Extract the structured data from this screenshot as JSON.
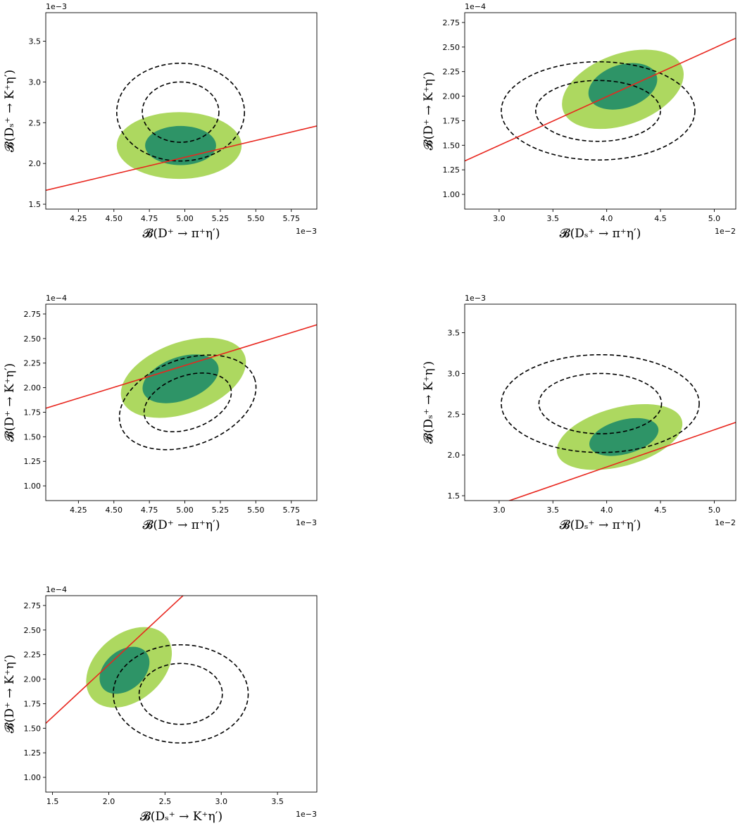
{
  "colors": {
    "outer_band": "#add860",
    "inner_band": "#2e9467",
    "fit_line": "#e8261e",
    "contour": "#000000",
    "frame": "#000000"
  },
  "chart_data": [
    {
      "type": "contour",
      "panel": "top-left",
      "xlabel": "𝓑(D⁺ → π⁺η′)",
      "ylabel": "𝓑(Dₛ⁺ → K⁺η′)",
      "x_offset_text": "1e−3",
      "y_offset_text": "1e−3",
      "xlim": [
        4.02,
        5.93
      ],
      "ylim": [
        1.44,
        3.85
      ],
      "xticks": [
        4.25,
        4.5,
        4.75,
        5.0,
        5.25,
        5.5,
        5.75
      ],
      "xtick_labels": [
        "4.25",
        "4.50",
        "4.75",
        "5.00",
        "5.25",
        "5.50",
        "5.75"
      ],
      "yticks": [
        1.5,
        2.0,
        2.5,
        3.0,
        3.5
      ],
      "ytick_labels": [
        "1.5",
        "2.0",
        "2.5",
        "3.0",
        "3.5"
      ],
      "outer_region": {
        "cx": 4.96,
        "cy": 2.22,
        "rx": 0.44,
        "ry": 0.41,
        "rot": 0
      },
      "inner_region": {
        "cx": 4.97,
        "cy": 2.22,
        "rx": 0.25,
        "ry": 0.24,
        "rot": 0
      },
      "dashed_contours": [
        {
          "cx": 4.97,
          "cy": 2.63,
          "rx": 0.27,
          "ry": 0.37,
          "rot": 0
        },
        {
          "cx": 4.97,
          "cy": 2.63,
          "rx": 0.45,
          "ry": 0.6,
          "rot": 0
        }
      ],
      "fit_line": {
        "x": [
          4.02,
          5.93
        ],
        "y": [
          1.67,
          2.46
        ]
      }
    },
    {
      "type": "contour",
      "panel": "top-right",
      "xlabel": "𝓑(Dₛ⁺ → π⁺η′)",
      "ylabel": "𝓑(D⁺ → K⁺η′)",
      "x_offset_text": "1e−2",
      "y_offset_text": "1e−4",
      "xlim": [
        2.68,
        5.2
      ],
      "ylim": [
        0.85,
        2.85
      ],
      "xticks": [
        3.0,
        3.5,
        4.0,
        4.5,
        5.0
      ],
      "xtick_labels": [
        "3.0",
        "3.5",
        "4.0",
        "4.5",
        "5.0"
      ],
      "yticks": [
        1.0,
        1.25,
        1.5,
        1.75,
        2.0,
        2.25,
        2.5,
        2.75
      ],
      "ytick_labels": [
        "1.00",
        "1.25",
        "1.50",
        "1.75",
        "2.00",
        "2.25",
        "2.50",
        "2.75"
      ],
      "outer_region": {
        "cx": 4.15,
        "cy": 2.07,
        "rx": 0.59,
        "ry": 0.36,
        "rot": 20
      },
      "inner_region": {
        "cx": 4.15,
        "cy": 2.1,
        "rx": 0.33,
        "ry": 0.22,
        "rot": 18
      },
      "dashed_contours": [
        {
          "cx": 3.92,
          "cy": 1.85,
          "rx": 0.58,
          "ry": 0.31,
          "rot": 0
        },
        {
          "cx": 3.92,
          "cy": 1.85,
          "rx": 0.9,
          "ry": 0.5,
          "rot": 0
        }
      ],
      "fit_line": {
        "x": [
          2.68,
          5.2
        ],
        "y": [
          1.34,
          2.59
        ]
      }
    },
    {
      "type": "contour",
      "panel": "middle-left",
      "xlabel": "𝓑(D⁺ → π⁺η′)",
      "ylabel": "𝓑(D⁺ → K⁺η′)",
      "x_offset_text": "1e−3",
      "y_offset_text": "1e−4",
      "xlim": [
        4.02,
        5.93
      ],
      "ylim": [
        0.85,
        2.85
      ],
      "xticks": [
        4.25,
        4.5,
        4.75,
        5.0,
        5.25,
        5.5,
        5.75
      ],
      "xtick_labels": [
        "4.25",
        "4.50",
        "4.75",
        "5.00",
        "5.25",
        "5.50",
        "5.75"
      ],
      "yticks": [
        1.0,
        1.25,
        1.5,
        1.75,
        2.0,
        2.25,
        2.5,
        2.75
      ],
      "ytick_labels": [
        "1.00",
        "1.25",
        "1.50",
        "1.75",
        "2.00",
        "2.25",
        "2.50",
        "2.75"
      ],
      "outer_region": {
        "cx": 4.99,
        "cy": 2.1,
        "rx": 0.46,
        "ry": 0.36,
        "rot": 20
      },
      "inner_region": {
        "cx": 4.97,
        "cy": 2.09,
        "rx": 0.28,
        "ry": 0.22,
        "rot": 20
      },
      "dashed_contours": [
        {
          "cx": 5.02,
          "cy": 1.85,
          "rx": 0.32,
          "ry": 0.27,
          "rot": 20
        },
        {
          "cx": 5.02,
          "cy": 1.85,
          "rx": 0.5,
          "ry": 0.44,
          "rot": 20
        }
      ],
      "fit_line": {
        "x": [
          4.02,
          5.93
        ],
        "y": [
          1.79,
          2.64
        ]
      }
    },
    {
      "type": "contour",
      "panel": "middle-right",
      "xlabel": "𝓑(Dₛ⁺ → π⁺η′)",
      "ylabel": "𝓑(Dₛ⁺ → K⁺η′)",
      "x_offset_text": "1e−2",
      "y_offset_text": "1e−3",
      "xlim": [
        2.68,
        5.2
      ],
      "ylim": [
        1.44,
        3.85
      ],
      "xticks": [
        3.0,
        3.5,
        4.0,
        4.5,
        5.0
      ],
      "xtick_labels": [
        "3.0",
        "3.5",
        "4.0",
        "4.5",
        "5.0"
      ],
      "yticks": [
        1.5,
        2.0,
        2.5,
        3.0,
        3.5
      ],
      "ytick_labels": [
        "1.5",
        "2.0",
        "2.5",
        "3.0",
        "3.5"
      ],
      "outer_region": {
        "cx": 4.12,
        "cy": 2.22,
        "rx": 0.6,
        "ry": 0.36,
        "rot": 15
      },
      "inner_region": {
        "cx": 4.16,
        "cy": 2.22,
        "rx": 0.33,
        "ry": 0.21,
        "rot": 15
      },
      "dashed_contours": [
        {
          "cx": 3.94,
          "cy": 2.63,
          "rx": 0.57,
          "ry": 0.37,
          "rot": 0
        },
        {
          "cx": 3.94,
          "cy": 2.63,
          "rx": 0.92,
          "ry": 0.6,
          "rot": 0
        }
      ],
      "fit_line": {
        "x": [
          2.68,
          5.2
        ],
        "y": [
          1.25,
          2.4
        ]
      }
    },
    {
      "type": "contour",
      "panel": "bottom-left",
      "xlabel": "𝓑(Dₛ⁺ → K⁺η′)",
      "ylabel": "𝓑(D⁺ → K⁺η′)",
      "x_offset_text": "1e−3",
      "y_offset_text": "1e−4",
      "xlim": [
        1.44,
        3.85
      ],
      "ylim": [
        0.85,
        2.85
      ],
      "xticks": [
        1.5,
        2.0,
        2.5,
        3.0,
        3.5
      ],
      "xtick_labels": [
        "1.5",
        "2.0",
        "2.5",
        "3.0",
        "3.5"
      ],
      "yticks": [
        1.0,
        1.25,
        1.5,
        1.75,
        2.0,
        2.25,
        2.5,
        2.75
      ],
      "ytick_labels": [
        "1.00",
        "1.25",
        "1.50",
        "1.75",
        "2.00",
        "2.25",
        "2.50",
        "2.75"
      ],
      "outer_region": {
        "cx": 2.18,
        "cy": 2.12,
        "rx": 0.43,
        "ry": 0.34,
        "rot": 40
      },
      "inner_region": {
        "cx": 2.14,
        "cy": 2.09,
        "rx": 0.25,
        "ry": 0.2,
        "rot": 40
      },
      "dashed_contours": [
        {
          "cx": 2.64,
          "cy": 1.85,
          "rx": 0.37,
          "ry": 0.31,
          "rot": 0
        },
        {
          "cx": 2.64,
          "cy": 1.85,
          "rx": 0.6,
          "ry": 0.5,
          "rot": 0
        }
      ],
      "fit_line": {
        "x": [
          1.44,
          2.66
        ],
        "y": [
          1.55,
          2.85
        ]
      }
    }
  ]
}
